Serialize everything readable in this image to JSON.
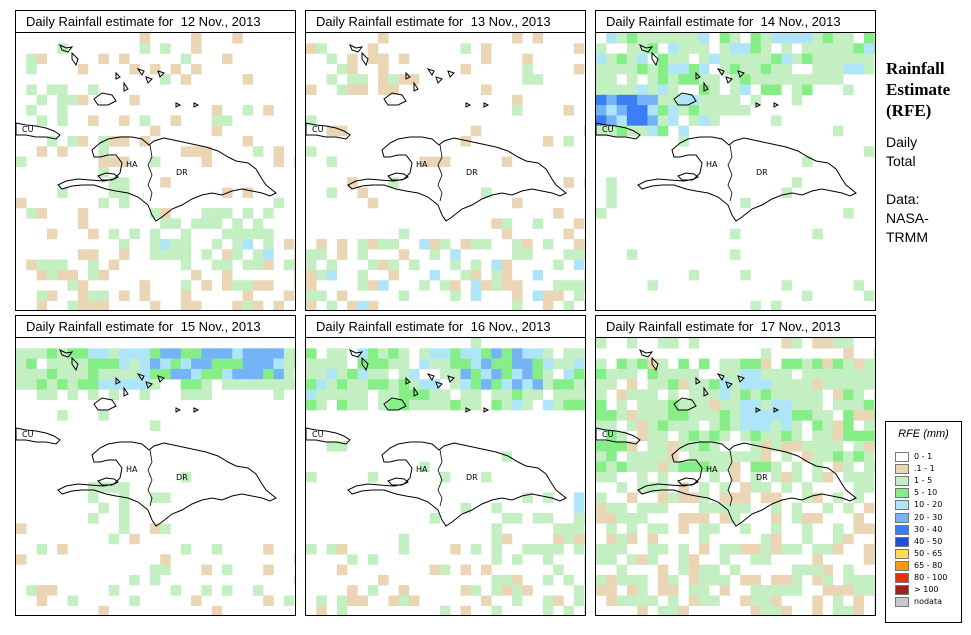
{
  "side": {
    "title_lines": [
      "Rainfall",
      "Estimate",
      "(RFE)"
    ],
    "lines": [
      "Daily",
      "Total",
      "",
      "Data:",
      "NASA-",
      "TRMM"
    ]
  },
  "legend": {
    "title": "RFE (mm)",
    "bins": [
      {
        "label": "0 - 1",
        "color": "#ffffff"
      },
      {
        "label": ".1 - 1",
        "color": "#ead5b5"
      },
      {
        "label": "1 - 5",
        "color": "#c3efc2"
      },
      {
        "label": "5 - 10",
        "color": "#86ee86"
      },
      {
        "label": "10 - 20",
        "color": "#aee5f8"
      },
      {
        "label": "20 - 30",
        "color": "#73b3f6"
      },
      {
        "label": "30 - 40",
        "color": "#3a7df5"
      },
      {
        "label": "40 - 50",
        "color": "#1d50de"
      },
      {
        "label": "50 - 65",
        "color": "#fbdc55"
      },
      {
        "label": "65 - 80",
        "color": "#fb9a0a"
      },
      {
        "label": "80 - 100",
        "color": "#e52f13"
      },
      {
        "label": "> 100",
        "color": "#9c2216"
      },
      {
        "label": "nodata",
        "color": "#c9c9c9"
      }
    ]
  },
  "place_labels": {
    "cu": "CU",
    "ha": "HA",
    "dr": "DR"
  },
  "chart_data": [
    {
      "type": "heatmap",
      "title": "Daily Rainfall estimate for  12 Nov., 2013",
      "date": "12 Nov., 2013",
      "pattern": "scattered light rain; main area south of Hispaniola",
      "bands": [
        {
          "region": "south",
          "category": "1 - 5"
        },
        {
          "region": "west",
          "category": "1 - 5"
        }
      ]
    },
    {
      "type": "heatmap",
      "title": "Daily Rainfall estimate for  13 Nov., 2013",
      "date": "13 Nov., 2013",
      "pattern": "scattered light rain; mostly south and northwest",
      "bands": [
        {
          "region": "south",
          "category": "1 - 5"
        },
        {
          "region": "north",
          "category": ".1 - 1"
        }
      ]
    },
    {
      "type": "heatmap",
      "title": "Daily Rainfall estimate for  14 Nov., 2013",
      "date": "14 Nov., 2013",
      "pattern": "rain band across the north, peak near Cuba",
      "bands": [
        {
          "region": "north",
          "category": "1 - 5"
        },
        {
          "region": "northwest",
          "category": "30 - 40"
        }
      ]
    },
    {
      "type": "heatmap",
      "title": "Daily Rainfall estimate for  15 Nov., 2013",
      "date": "15 Nov., 2013",
      "pattern": "heavy rain band along the north",
      "bands": [
        {
          "region": "north",
          "category": "20 - 30"
        },
        {
          "region": "south",
          "category": "1 - 5"
        }
      ]
    },
    {
      "type": "heatmap",
      "title": "Daily Rainfall estimate for  16 Nov., 2013",
      "date": "16 Nov., 2013",
      "pattern": "heavy rain band along the north; light rain south",
      "bands": [
        {
          "region": "north",
          "category": "20 - 30"
        },
        {
          "region": "south",
          "category": "5 - 10"
        }
      ]
    },
    {
      "type": "heatmap",
      "title": "Daily Rainfall estimate for  17 Nov., 2013",
      "date": "17 Nov., 2013",
      "pattern": "widespread light to moderate rain",
      "bands": [
        {
          "region": "widespread",
          "category": "1 - 5"
        },
        {
          "region": "north-central",
          "category": "10 - 20"
        }
      ]
    }
  ]
}
